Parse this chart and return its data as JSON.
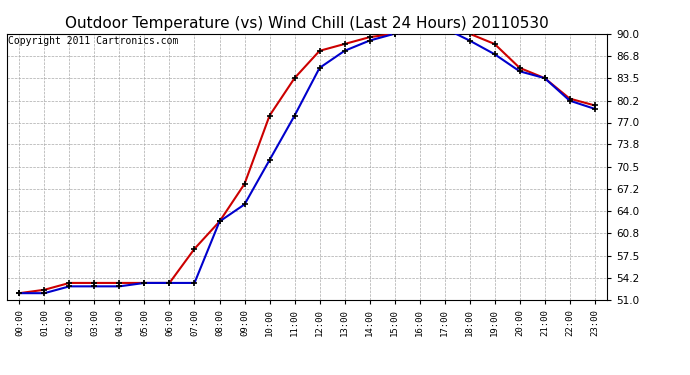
{
  "title": "Outdoor Temperature (vs) Wind Chill (Last 24 Hours) 20110530",
  "copyright": "Copyright 2011 Cartronics.com",
  "x_labels": [
    "00:00",
    "01:00",
    "02:00",
    "03:00",
    "04:00",
    "05:00",
    "06:00",
    "07:00",
    "08:00",
    "09:00",
    "10:00",
    "11:00",
    "12:00",
    "13:00",
    "14:00",
    "15:00",
    "16:00",
    "17:00",
    "18:00",
    "19:00",
    "20:00",
    "21:00",
    "22:00",
    "23:00"
  ],
  "y_ticks": [
    51.0,
    54.2,
    57.5,
    60.8,
    64.0,
    67.2,
    70.5,
    73.8,
    77.0,
    80.2,
    83.5,
    86.8,
    90.0
  ],
  "ylim": [
    51.0,
    90.0
  ],
  "temp_red": [
    52.0,
    52.5,
    53.5,
    53.5,
    53.5,
    53.5,
    53.5,
    58.5,
    62.5,
    68.0,
    78.0,
    83.5,
    87.5,
    88.5,
    89.5,
    90.0,
    90.5,
    91.0,
    90.0,
    88.5,
    85.0,
    83.5,
    80.5,
    79.5
  ],
  "wind_chill_blue": [
    52.0,
    52.0,
    53.0,
    53.0,
    53.0,
    53.5,
    53.5,
    53.5,
    62.5,
    65.0,
    71.5,
    78.0,
    85.0,
    87.5,
    89.0,
    90.0,
    90.5,
    90.8,
    89.0,
    87.0,
    84.5,
    83.5,
    80.2,
    79.0
  ],
  "bg_color": "#ffffff",
  "plot_bg_color": "#ffffff",
  "red_color": "#cc0000",
  "blue_color": "#0000cc",
  "grid_color": "#aaaaaa",
  "title_color": "#000000",
  "title_fontsize": 11,
  "copyright_fontsize": 7,
  "marker_color": "#000000",
  "marker_size": 5
}
